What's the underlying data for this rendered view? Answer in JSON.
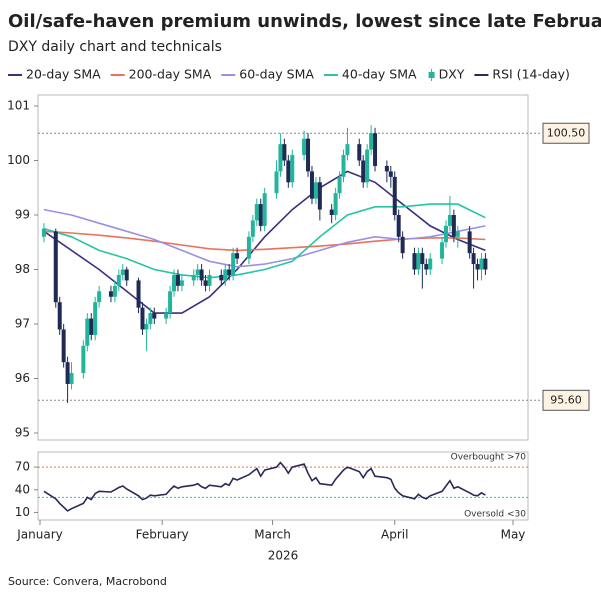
{
  "chart_data": [
    {
      "type": "candlestick",
      "title": "Oil/safe-haven premium unwinds, lowest since late February",
      "subtitle": "DXY daily chart and technicals",
      "name": "DXY",
      "up_color": "#22b59b",
      "down_color": "#1f2a55",
      "x": [
        1,
        4,
        5,
        6,
        7,
        8,
        11,
        12,
        13,
        14,
        15,
        18,
        19,
        20,
        21,
        22,
        25,
        26,
        27,
        28,
        29,
        32,
        33,
        34,
        35,
        36,
        39,
        40,
        41,
        42,
        43,
        46,
        47,
        48,
        49,
        50,
        53,
        54,
        55,
        56,
        57,
        60,
        61,
        62,
        63,
        64,
        67,
        68,
        69,
        70,
        71,
        74,
        75,
        76,
        77,
        78,
        81,
        82,
        83,
        84,
        85,
        88,
        89,
        90,
        91,
        92,
        95,
        96,
        97,
        98,
        99,
        102,
        103,
        104,
        105,
        106,
        109,
        110,
        111,
        112,
        113
      ],
      "open": [
        98.6,
        98.7,
        97.4,
        96.9,
        96.3,
        95.9,
        96.1,
        96.6,
        97.1,
        96.8,
        97.4,
        97.6,
        97.5,
        97.7,
        97.9,
        98.0,
        97.8,
        97.3,
        96.9,
        97.0,
        97.2,
        97.1,
        97.2,
        97.6,
        97.9,
        97.7,
        97.8,
        97.9,
        98.0,
        97.8,
        97.7,
        97.9,
        97.8,
        98.0,
        97.9,
        98.3,
        98.2,
        98.6,
        98.9,
        99.2,
        98.8,
        99.4,
        99.8,
        100.3,
        100.0,
        99.6,
        100.1,
        100.4,
        99.8,
        99.3,
        99.6,
        99.1,
        99.0,
        99.4,
        99.7,
        100.1,
        100.3,
        100.0,
        99.6,
        100.2,
        100.5,
        99.9,
        99.8,
        99.7,
        99.0,
        98.6,
        98.3,
        98.0,
        98.3,
        98.1,
        98.0,
        98.2,
        98.5,
        98.8,
        99.0,
        98.6,
        98.7,
        98.3,
        98.1,
        98.0,
        98.2
      ],
      "high": [
        98.85,
        98.75,
        97.5,
        97.0,
        96.4,
        96.3,
        96.7,
        97.2,
        97.2,
        97.5,
        97.7,
        97.7,
        97.8,
        98.0,
        98.1,
        98.05,
        97.85,
        97.4,
        97.1,
        97.3,
        97.3,
        97.3,
        97.7,
        98.0,
        98.0,
        97.9,
        98.0,
        98.1,
        98.1,
        97.9,
        98.0,
        98.0,
        98.1,
        98.1,
        98.4,
        98.4,
        98.7,
        99.0,
        99.3,
        99.3,
        99.5,
        100.0,
        100.5,
        100.4,
        100.1,
        100.2,
        100.55,
        100.5,
        99.9,
        99.7,
        99.7,
        99.2,
        99.5,
        99.8,
        100.2,
        100.6,
        100.4,
        100.1,
        100.3,
        100.65,
        100.6,
        100.0,
        99.9,
        99.8,
        99.1,
        98.7,
        98.4,
        98.4,
        98.4,
        98.2,
        98.3,
        98.6,
        98.9,
        99.35,
        99.1,
        98.8,
        98.8,
        98.4,
        98.2,
        98.3,
        98.3
      ],
      "low": [
        98.5,
        97.3,
        96.8,
        96.2,
        95.55,
        95.8,
        96.0,
        96.5,
        96.7,
        96.7,
        97.3,
        97.4,
        97.4,
        97.6,
        97.8,
        97.7,
        97.2,
        96.8,
        96.5,
        96.9,
        97.0,
        97.0,
        97.1,
        97.5,
        97.6,
        97.6,
        97.7,
        97.8,
        97.7,
        97.6,
        97.6,
        97.7,
        97.7,
        97.8,
        97.8,
        98.1,
        98.1,
        98.5,
        98.8,
        98.7,
        98.7,
        99.3,
        99.7,
        99.9,
        99.5,
        99.5,
        100.0,
        99.7,
        99.2,
        99.2,
        98.9,
        98.85,
        98.9,
        99.3,
        99.6,
        100.0,
        99.9,
        99.5,
        99.5,
        100.1,
        99.8,
        99.6,
        99.5,
        98.9,
        98.5,
        98.2,
        97.9,
        97.9,
        97.65,
        97.9,
        97.9,
        98.1,
        98.4,
        98.7,
        98.5,
        98.4,
        98.2,
        97.65,
        97.8,
        97.8,
        97.9
      ],
      "close": [
        98.75,
        97.4,
        96.9,
        96.3,
        95.9,
        96.1,
        96.6,
        97.1,
        96.8,
        97.4,
        97.6,
        97.5,
        97.7,
        97.9,
        98.0,
        97.8,
        97.3,
        96.9,
        97.0,
        97.2,
        97.1,
        97.2,
        97.6,
        97.9,
        97.7,
        97.8,
        97.9,
        98.0,
        97.8,
        97.7,
        97.9,
        97.8,
        98.0,
        97.9,
        98.3,
        98.2,
        98.6,
        98.9,
        99.2,
        98.8,
        99.4,
        99.8,
        100.3,
        100.0,
        99.6,
        100.1,
        100.4,
        99.8,
        99.3,
        99.6,
        99.1,
        99.0,
        99.4,
        99.7,
        100.1,
        100.3,
        100.0,
        99.6,
        100.2,
        100.5,
        99.9,
        99.8,
        99.7,
        99.0,
        98.6,
        98.3,
        98.0,
        98.3,
        98.1,
        98.0,
        98.2,
        98.5,
        98.8,
        99.0,
        98.6,
        98.7,
        98.3,
        98.1,
        98.0,
        98.2,
        98.0
      ],
      "series": [
        {
          "name": "20-day SMA",
          "color": "#3b2f7f",
          "x": [
            1,
            8,
            15,
            22,
            29,
            36,
            43,
            50,
            57,
            64,
            71,
            78,
            85,
            92,
            99,
            106,
            113
          ],
          "values": [
            98.7,
            98.35,
            98.0,
            97.6,
            97.2,
            97.2,
            97.5,
            98.0,
            98.6,
            99.1,
            99.5,
            99.8,
            99.6,
            99.2,
            98.8,
            98.55,
            98.35
          ]
        },
        {
          "name": "200-day SMA",
          "color": "#e8735a",
          "x": [
            1,
            8,
            15,
            22,
            29,
            36,
            43,
            50,
            57,
            64,
            71,
            78,
            85,
            92,
            99,
            106,
            113
          ],
          "values": [
            98.7,
            98.67,
            98.63,
            98.58,
            98.52,
            98.45,
            98.38,
            98.35,
            98.37,
            98.4,
            98.43,
            98.47,
            98.52,
            98.56,
            98.58,
            98.58,
            98.55
          ]
        },
        {
          "name": "60-day SMA",
          "color": "#9d8fe3",
          "x": [
            1,
            8,
            15,
            22,
            29,
            36,
            43,
            50,
            57,
            64,
            71,
            78,
            85,
            92,
            99,
            106,
            113
          ],
          "values": [
            99.1,
            99.0,
            98.85,
            98.7,
            98.55,
            98.35,
            98.15,
            98.05,
            98.1,
            98.2,
            98.35,
            98.5,
            98.6,
            98.55,
            98.6,
            98.7,
            98.8
          ]
        },
        {
          "name": "40-day SMA",
          "color": "#27c4a6",
          "x": [
            1,
            8,
            15,
            22,
            29,
            36,
            43,
            50,
            57,
            64,
            71,
            78,
            85,
            92,
            99,
            106,
            113
          ],
          "values": [
            98.75,
            98.6,
            98.35,
            98.2,
            98.0,
            97.9,
            97.85,
            97.9,
            98.0,
            98.15,
            98.6,
            99.0,
            99.15,
            99.15,
            99.2,
            99.2,
            98.95
          ]
        }
      ],
      "ylim": [
        95,
        101
      ],
      "yticks": [
        95,
        96,
        97,
        98,
        99,
        100,
        101
      ],
      "xlim": [
        0,
        120
      ],
      "xticks": [
        {
          "value": 0,
          "label": "January"
        },
        {
          "value": 31,
          "label": "February"
        },
        {
          "value": 59,
          "label": "March"
        },
        {
          "value": 90,
          "label": "April"
        },
        {
          "value": 120,
          "label": "May"
        }
      ],
      "xlabel": "2026",
      "annotations": [
        {
          "value": 100.5,
          "label": "100.50"
        },
        {
          "value": 95.6,
          "label": "95.60"
        }
      ],
      "source": "Source: Convera, Macrobond"
    },
    {
      "type": "line",
      "series": [
        {
          "name": "RSI (14-day)",
          "color": "#2a2a5a",
          "values": [
            38,
            28,
            22,
            17,
            12,
            15,
            22,
            30,
            27,
            35,
            38,
            37,
            40,
            43,
            45,
            41,
            32,
            27,
            29,
            33,
            32,
            34,
            40,
            45,
            42,
            44,
            46,
            48,
            44,
            42,
            46,
            44,
            48,
            46,
            55,
            53,
            60,
            64,
            68,
            58,
            66,
            70,
            76,
            70,
            62,
            70,
            74,
            62,
            52,
            56,
            48,
            46,
            54,
            60,
            66,
            70,
            64,
            56,
            64,
            68,
            58,
            56,
            54,
            42,
            36,
            32,
            28,
            34,
            30,
            28,
            32,
            38,
            45,
            52,
            42,
            44,
            36,
            33,
            32,
            36,
            33
          ]
        }
      ],
      "ylim": [
        0,
        90
      ],
      "yticks": [
        10,
        40,
        70
      ],
      "hlines": [
        {
          "value": 70,
          "label": "Overbought >70",
          "color": "#e8735a"
        },
        {
          "value": 30,
          "label": "Oversold <30",
          "color": "#27c4a6"
        }
      ]
    }
  ]
}
